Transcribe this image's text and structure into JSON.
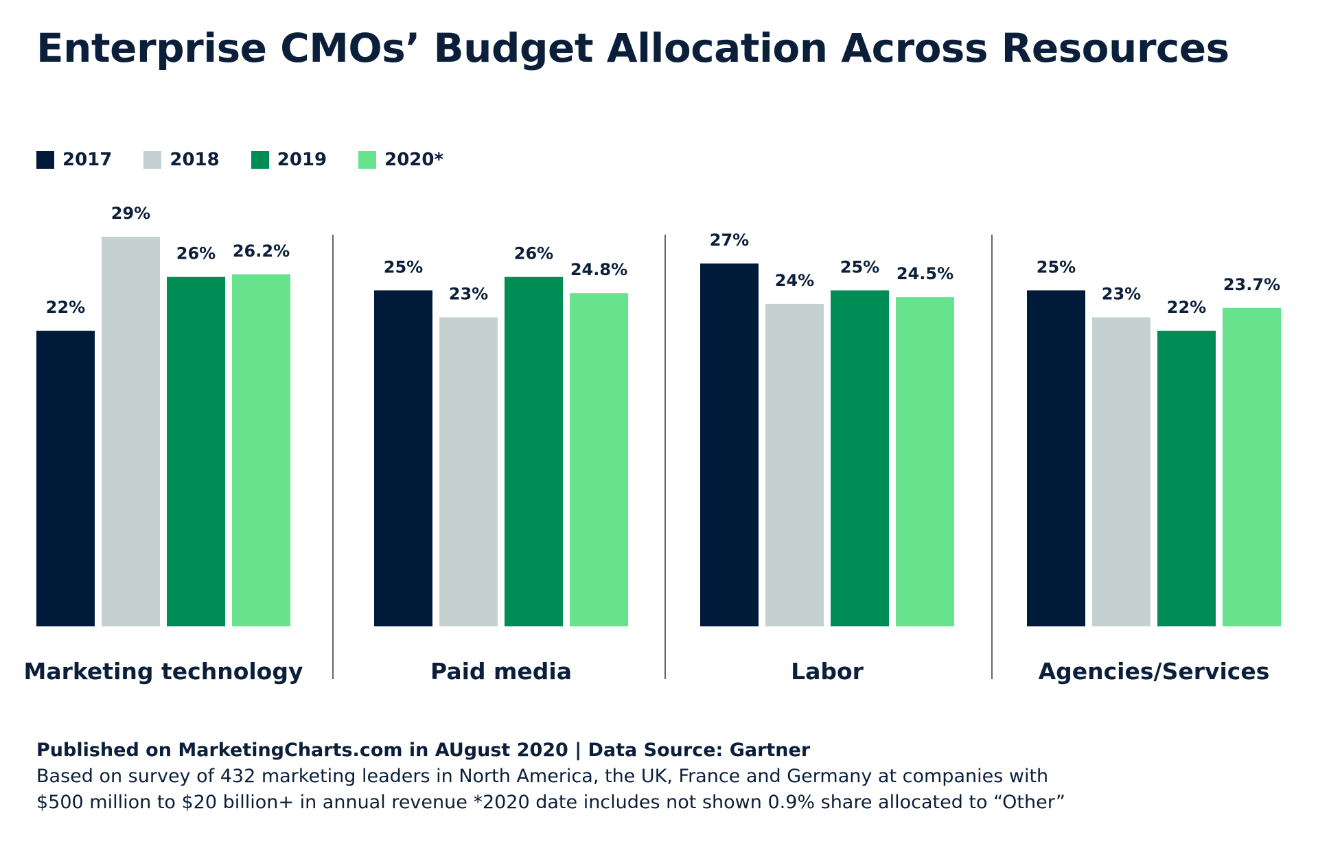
{
  "title": "Enterprise CMOs’ Budget Allocation Across Resources",
  "legend": [
    {
      "label": "2017",
      "color": "#001a3a"
    },
    {
      "label": "2018",
      "color": "#c5d0d1"
    },
    {
      "label": "2019",
      "color": "#008c55"
    },
    {
      "label": "2020*",
      "color": "#66e38c"
    }
  ],
  "chart_data": {
    "type": "bar",
    "categories": [
      "Marketing technology",
      "Paid media",
      "Labor",
      "Agencies/Services"
    ],
    "series": [
      {
        "name": "2017",
        "color": "#001a3a",
        "values": [
          22,
          25,
          27,
          25
        ],
        "labels": [
          "22%",
          "25%",
          "27%",
          "25%"
        ]
      },
      {
        "name": "2018",
        "color": "#c5d0d1",
        "values": [
          29,
          23,
          24,
          23
        ],
        "labels": [
          "29%",
          "23%",
          "24%",
          "23%"
        ]
      },
      {
        "name": "2019",
        "color": "#008c55",
        "values": [
          26,
          26,
          25,
          22
        ],
        "labels": [
          "26%",
          "26%",
          "25%",
          "22%"
        ]
      },
      {
        "name": "2020*",
        "color": "#66e38c",
        "values": [
          26.2,
          24.8,
          24.5,
          23.7
        ],
        "labels": [
          "26.2%",
          "24.8%",
          "24.5%",
          "23.7%"
        ]
      }
    ],
    "ylim": [
      0,
      31.5
    ],
    "grid": false,
    "legend_position": "top-left"
  },
  "footer": {
    "source": "Published on MarketingCharts.com in AUgust 2020 | Data Source: Gartner",
    "note_line1": "Based on survey of 432 marketing leaders in North America, the UK, France and Germany at companies with",
    "note_line2": "$500 million to $20 billion+ in annual revenue *2020 date includes not shown 0.9% share allocated to “Other”"
  }
}
